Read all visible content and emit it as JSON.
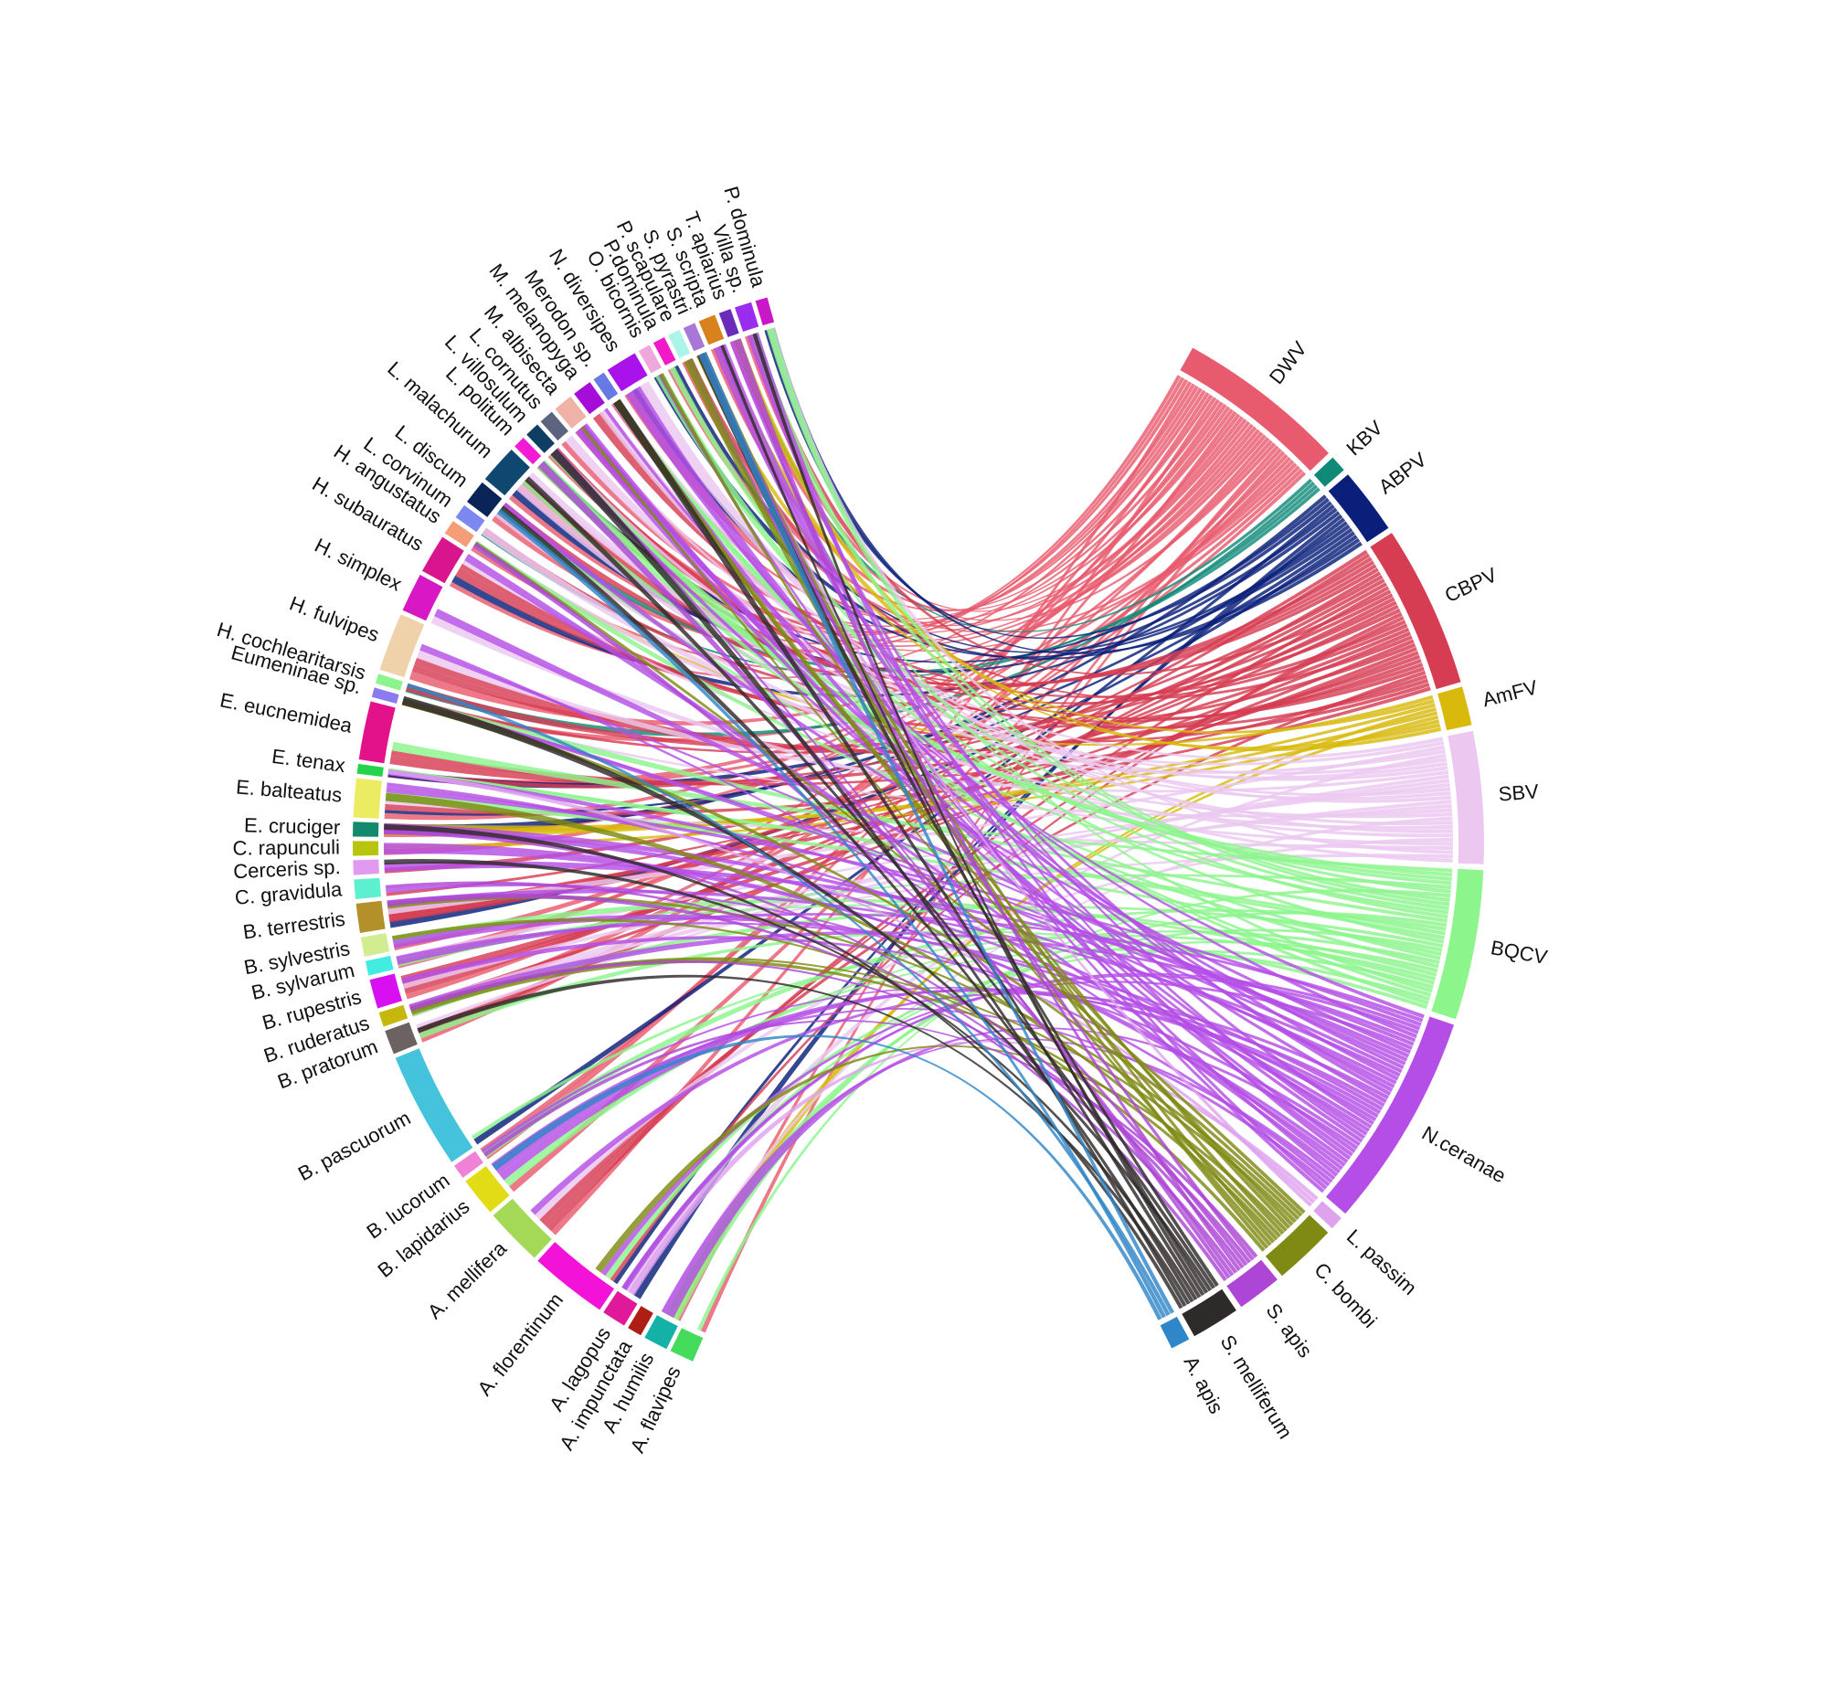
{
  "pathogens": [
    {
      "label": "DWV",
      "color": "#e85a6e"
    },
    {
      "label": "KBV",
      "color": "#0f8a78"
    },
    {
      "label": "ABPV",
      "color": "#0a1f7a"
    },
    {
      "label": "CBPV",
      "color": "#d63c52"
    },
    {
      "label": "AmFV",
      "color": "#d8b90c"
    },
    {
      "label": "SBV",
      "color": "#ecc8f0"
    },
    {
      "label": "BQCV",
      "color": "#8cf58c"
    },
    {
      "label": "N.ceranae",
      "color": "#b54ee6"
    },
    {
      "label": "L. passim",
      "color": "#dfa2ee"
    },
    {
      "label": "C. bombi",
      "color": "#7e8a12"
    },
    {
      "label": "S. apis",
      "color": "#ad45d6"
    },
    {
      "label": "S. melliferum",
      "color": "#2e2a2a"
    },
    {
      "label": "A. apis",
      "color": "#2f86c8"
    }
  ],
  "hosts": [
    {
      "label": "A. flavipes",
      "color": "#45dc5c"
    },
    {
      "label": "A. humilis",
      "color": "#14b1a6"
    },
    {
      "label": "A. impunctata",
      "color": "#ad1f15"
    },
    {
      "label": "A. lagopus",
      "color": "#e0199a"
    },
    {
      "label": "A. florentinum",
      "color": "#f212d8"
    },
    {
      "label": "A. mellifera",
      "color": "#a3d957"
    },
    {
      "label": "B. lapidarius",
      "color": "#e2dc16"
    },
    {
      "label": "B. lucorum",
      "color": "#ef82d6"
    },
    {
      "label": "B. pascuorum",
      "color": "#45c3dc"
    },
    {
      "label": "B. pratorum",
      "color": "#6c6262"
    },
    {
      "label": "B. ruderatus",
      "color": "#c5b70c"
    },
    {
      "label": "B. rupestris",
      "color": "#d80ff0"
    },
    {
      "label": "B. sylvarum",
      "color": "#42ece0"
    },
    {
      "label": "B. sylvestris",
      "color": "#d2ec92"
    },
    {
      "label": "B. terrestris",
      "color": "#b3902a"
    },
    {
      "label": "C. gravidula",
      "color": "#5cf0d0"
    },
    {
      "label": "Cerceris sp.",
      "color": "#e29af0"
    },
    {
      "label": "C. rapunculi",
      "color": "#b9c40c"
    },
    {
      "label": "E. cruciger",
      "color": "#138a6e"
    },
    {
      "label": "E. balteatus",
      "color": "#ecec62"
    },
    {
      "label": "E. tenax",
      "color": "#22d449"
    },
    {
      "label": "E. eucnemidea",
      "color": "#e4128a"
    },
    {
      "label": "Eumeninae sp.",
      "color": "#8a7cf0"
    },
    {
      "label": "H. cochlearitarsis",
      "color": "#8cf48c"
    },
    {
      "label": "H. fulvipes",
      "color": "#f0d2aa"
    },
    {
      "label": "H. simplex",
      "color": "#d718c4"
    },
    {
      "label": "H. subauratus",
      "color": "#d9158e"
    },
    {
      "label": "H. angustatus",
      "color": "#f59c78"
    },
    {
      "label": "L. corvinum",
      "color": "#7c88f0"
    },
    {
      "label": "L. discum",
      "color": "#0a2458"
    },
    {
      "label": "L. malachurum",
      "color": "#0e4870"
    },
    {
      "label": "L. politum",
      "color": "#f21ad4"
    },
    {
      "label": "L. villosulum",
      "color": "#0e3e64"
    },
    {
      "label": "L. cornutus",
      "color": "#5c6480"
    },
    {
      "label": "M. albisecta",
      "color": "#f0b2a6"
    },
    {
      "label": "M. melanopyga",
      "color": "#a40ed8"
    },
    {
      "label": "Merodon sp.",
      "color": "#6878e4"
    },
    {
      "label": "N. diversipes",
      "color": "#aa12ec"
    },
    {
      "label": "O. bicornis",
      "color": "#f0a8dc"
    },
    {
      "label": "P.dominula",
      "color": "#f21ac8"
    },
    {
      "label": "P. scapulare",
      "color": "#aaf4e8"
    },
    {
      "label": "S. pyrastri",
      "color": "#a878d8"
    },
    {
      "label": "S. scripta",
      "color": "#d8821e"
    },
    {
      "label": "T. apiarius",
      "color": "#6c2ab8"
    },
    {
      "label": "Villa sp.",
      "color": "#9a2cf0"
    },
    {
      "label": "P. dominula",
      "color": "#c818c8"
    }
  ]
}
